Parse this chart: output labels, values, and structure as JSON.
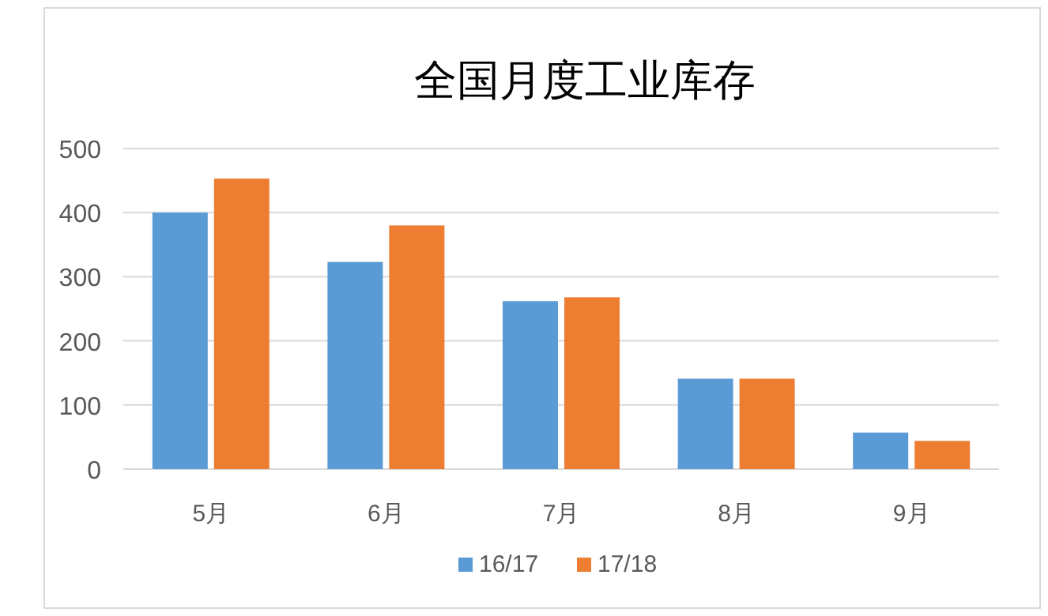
{
  "chart_data": {
    "type": "bar",
    "title": "全国月度工业库存",
    "categories": [
      "5月",
      "6月",
      "7月",
      "8月",
      "9月"
    ],
    "series": [
      {
        "name": "16/17",
        "color": "#5b9bd5",
        "values": [
          400,
          323,
          262,
          141,
          57
        ]
      },
      {
        "name": "17/18",
        "color": "#ed7d31",
        "values": [
          453,
          380,
          268,
          141,
          44
        ]
      }
    ],
    "ylim": [
      0,
      500
    ],
    "yticks": [
      0,
      100,
      200,
      300,
      400,
      500
    ],
    "grid": "y",
    "legend": "bottom"
  }
}
